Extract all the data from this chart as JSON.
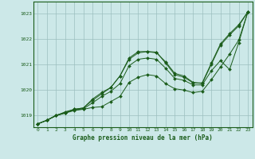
{
  "title": "Graphe pression niveau de la mer (hPa)",
  "background_color": "#cce8e8",
  "plot_bg_color": "#cce8e8",
  "grid_color": "#9cbfbf",
  "line_color": "#1a5c1a",
  "marker_color": "#1a5c1a",
  "xlim": [
    -0.5,
    23.5
  ],
  "ylim": [
    1018.55,
    1023.45
  ],
  "yticks": [
    1019,
    1020,
    1021,
    1022,
    1023
  ],
  "xticks": [
    0,
    1,
    2,
    3,
    4,
    5,
    6,
    7,
    8,
    9,
    10,
    11,
    12,
    13,
    14,
    15,
    16,
    17,
    18,
    19,
    20,
    21,
    22,
    23
  ],
  "series": [
    [
      1018.68,
      1018.82,
      1019.0,
      1019.1,
      1019.2,
      1019.25,
      1019.32,
      1019.35,
      1019.55,
      1019.75,
      1020.3,
      1020.5,
      1020.6,
      1020.55,
      1020.25,
      1020.05,
      1020.0,
      1019.9,
      1019.95,
      1020.4,
      1020.9,
      1021.4,
      1021.95,
      1023.05
    ],
    [
      1018.68,
      1018.82,
      1019.0,
      1019.15,
      1019.25,
      1019.3,
      1019.65,
      1019.9,
      1020.1,
      1020.55,
      1021.2,
      1021.45,
      1021.5,
      1021.45,
      1021.1,
      1020.65,
      1020.55,
      1020.3,
      1020.25,
      1021.0,
      1021.75,
      1022.15,
      1022.5,
      1023.05
    ],
    [
      1018.68,
      1018.82,
      1019.0,
      1019.1,
      1019.25,
      1019.3,
      1019.6,
      1019.85,
      1020.1,
      1020.55,
      1021.25,
      1021.5,
      1021.5,
      1021.48,
      1021.05,
      1020.6,
      1020.5,
      1020.28,
      1020.28,
      1021.05,
      1021.8,
      1022.2,
      1022.55,
      1023.05
    ],
    [
      1018.68,
      1018.82,
      1019.02,
      1019.12,
      1019.22,
      1019.27,
      1019.5,
      1019.75,
      1019.95,
      1020.25,
      1020.95,
      1021.2,
      1021.25,
      1021.2,
      1020.85,
      1020.45,
      1020.38,
      1020.2,
      1020.2,
      1020.75,
      1021.15,
      1020.8,
      1021.85,
      1023.05
    ]
  ]
}
